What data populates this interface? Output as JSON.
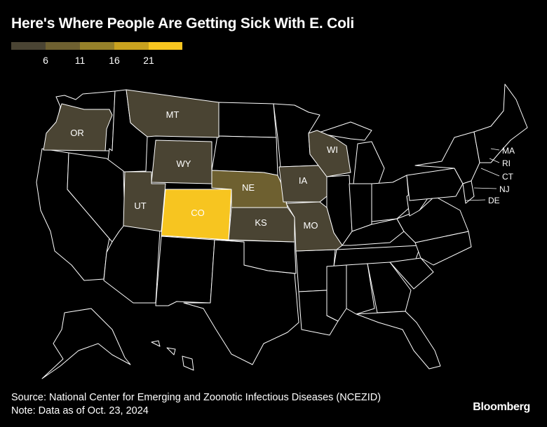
{
  "title": "Here's Where People Are Getting Sick With E. Coli",
  "legend": {
    "ticks": [
      "6",
      "11",
      "16",
      "21"
    ],
    "colors": [
      "#4a4433",
      "#6e6030",
      "#96812a",
      "#c9a21f",
      "#f7c520"
    ]
  },
  "colors": {
    "background": "#000000",
    "border": "#ffffff",
    "unaffected": "#000000"
  },
  "states": {
    "OR": {
      "label": "OR"
    },
    "MT": {
      "label": "MT"
    },
    "WY": {
      "label": "WY"
    },
    "UT": {
      "label": "UT"
    },
    "CO": {
      "label": "CO"
    },
    "NE": {
      "label": "NE"
    },
    "KS": {
      "label": "KS"
    },
    "IA": {
      "label": "IA"
    },
    "MO": {
      "label": "MO"
    },
    "WI": {
      "label": "WI"
    }
  },
  "callouts": [
    "MA",
    "RI",
    "CT",
    "NJ",
    "DE"
  ],
  "footer": {
    "source": "Source: National Center for Emerging and Zoonotic Infectious Diseases (NCEZID)",
    "note": "Note: Data as of Oct. 23, 2024"
  },
  "brand": "Bloomberg"
}
